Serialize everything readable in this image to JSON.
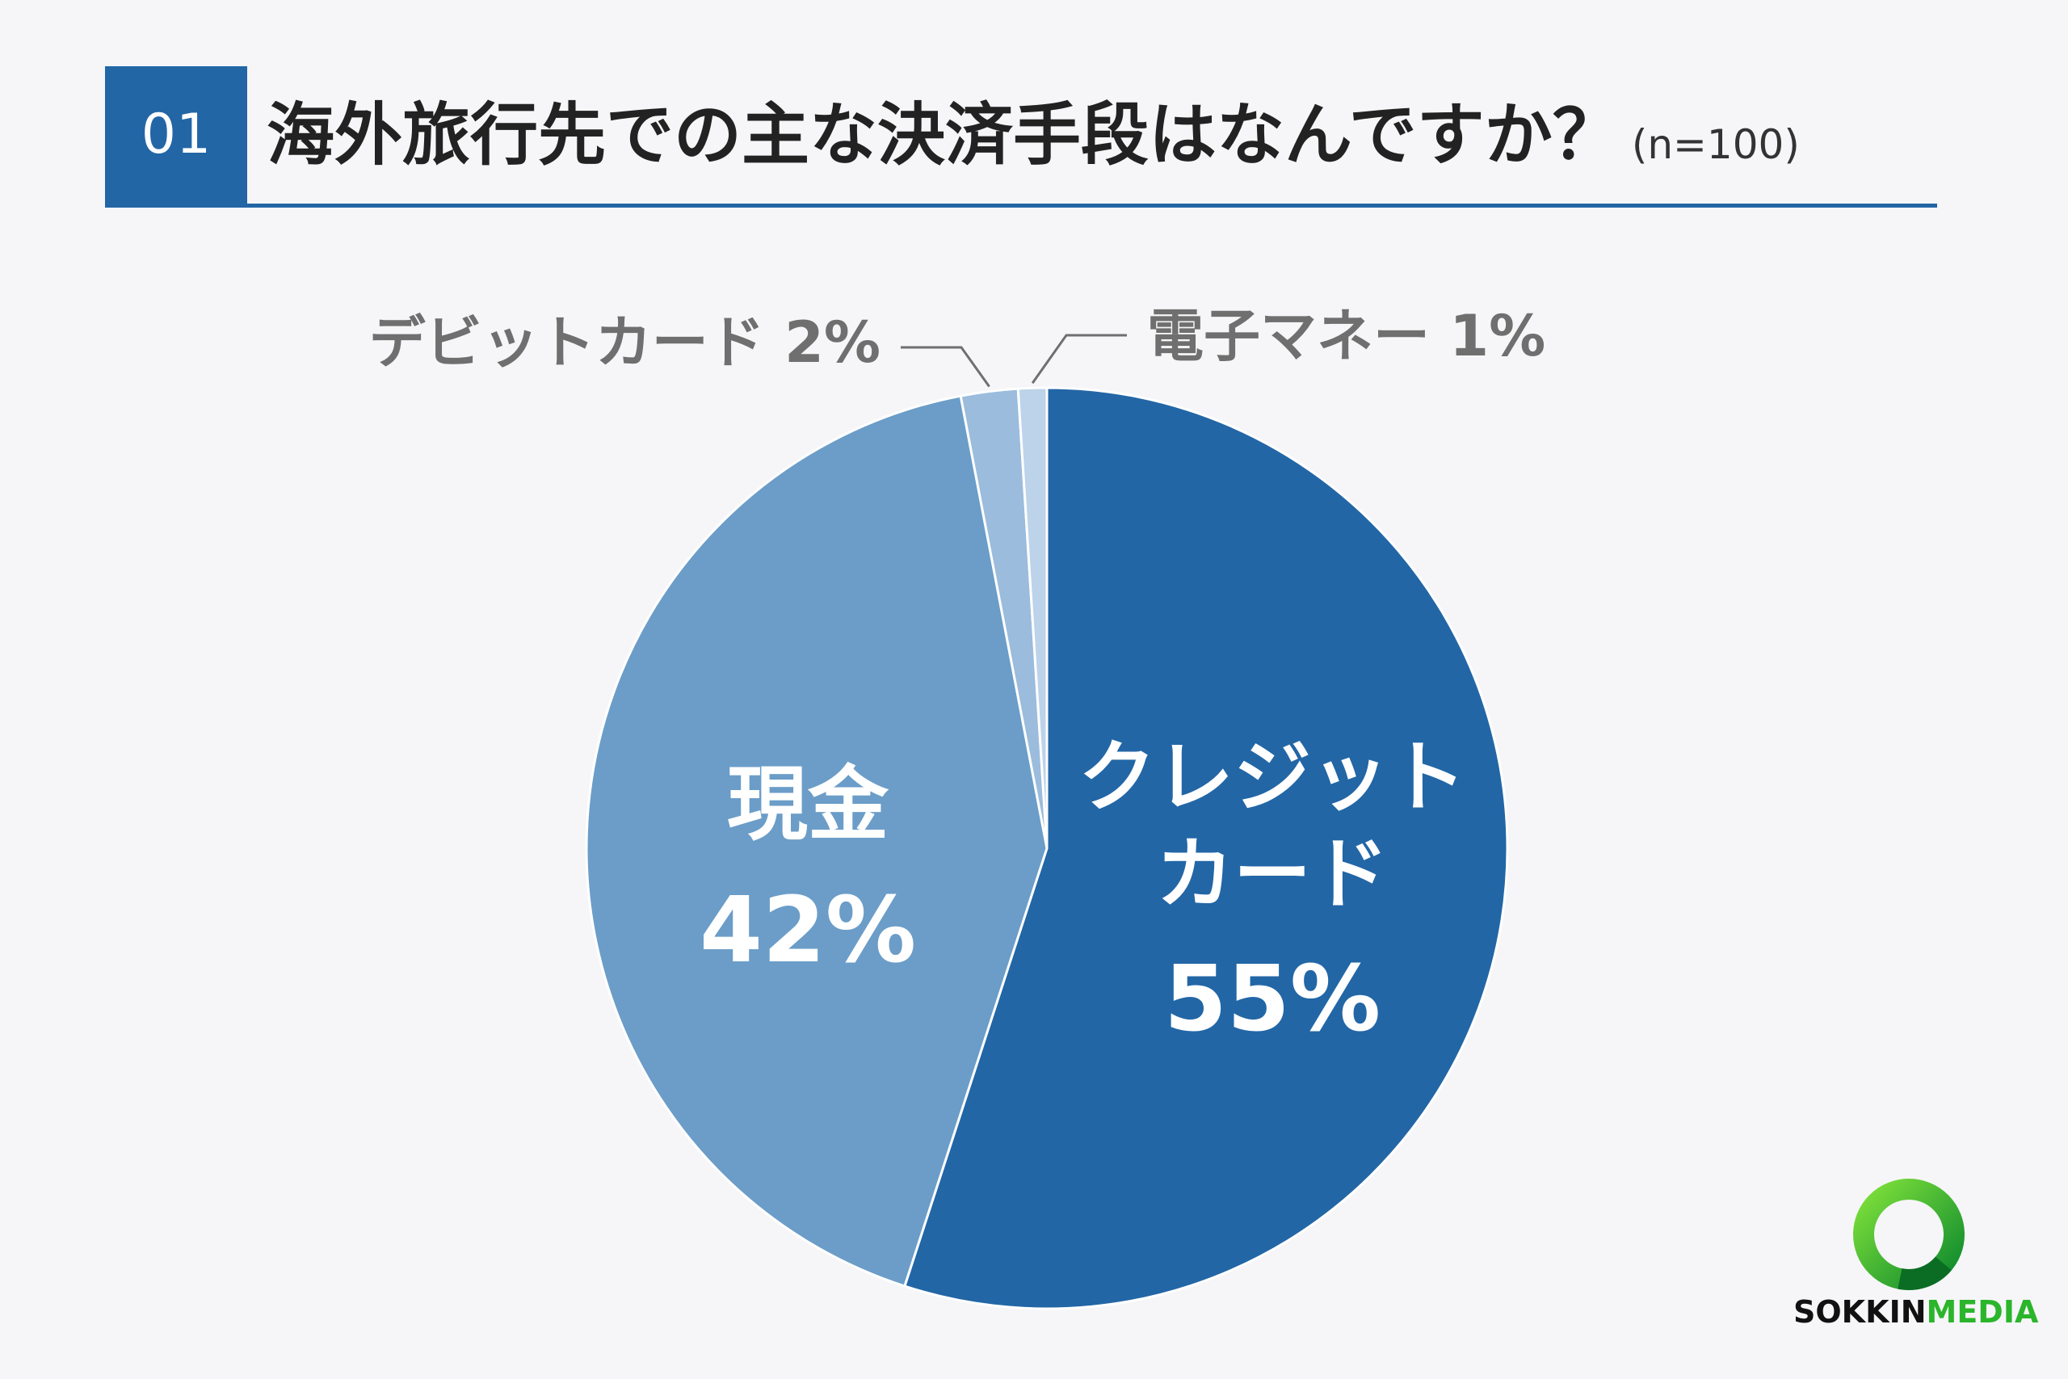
{
  "header": {
    "number": "01",
    "title": "海外旅行先での主な決済手段はなんですか？",
    "sample": "(n=100)"
  },
  "chart_data": {
    "type": "pie",
    "slices": [
      {
        "label": "クレジットカード",
        "value": 55,
        "display": "55%",
        "color": "#2266a6"
      },
      {
        "label": "現金",
        "value": 42,
        "display": "42%",
        "color": "#6b9dc8"
      },
      {
        "label": "デビットカード",
        "value": 2,
        "display": "2%",
        "color": "#9bbcdc"
      },
      {
        "label": "電子マネー",
        "value": 1,
        "display": "1%",
        "color": "#bcd3ea"
      }
    ]
  },
  "logo": {
    "brand_a": "SOKKIN",
    "brand_b": "MEDIA"
  }
}
